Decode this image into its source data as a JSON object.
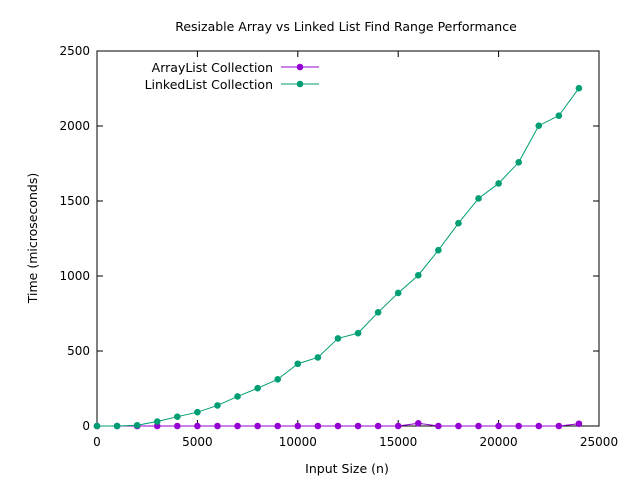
{
  "chart_data": {
    "type": "line",
    "title": "Resizable Array vs Linked List Find Range Performance",
    "xlabel": "Input Size (n)",
    "ylabel": "Time (microseconds)",
    "xlim": [
      0,
      25000
    ],
    "ylim": [
      0,
      2500
    ],
    "xticks": [
      0,
      5000,
      10000,
      15000,
      20000,
      25000
    ],
    "yticks": [
      0,
      500,
      1000,
      1500,
      2000,
      2500
    ],
    "grid": false,
    "legend_position": "top-left",
    "x": [
      0,
      1000,
      2000,
      3000,
      4000,
      5000,
      6000,
      7000,
      8000,
      9000,
      10000,
      11000,
      12000,
      13000,
      14000,
      15000,
      16000,
      17000,
      18000,
      19000,
      20000,
      21000,
      22000,
      23000,
      24000
    ],
    "series": [
      {
        "name": "ArrayList Collection",
        "color": "#9400d3",
        "values": [
          0,
          0,
          0,
          0,
          0,
          0,
          0,
          0,
          0,
          0,
          0,
          0,
          0,
          0,
          0,
          0,
          18,
          0,
          0,
          0,
          0,
          0,
          0,
          0,
          15
        ]
      },
      {
        "name": "LinkedList Collection",
        "color": "#009e73",
        "values": [
          0,
          0,
          5,
          30,
          62,
          92,
          137,
          197,
          252,
          311,
          415,
          457,
          584,
          619,
          758,
          887,
          1005,
          1172,
          1352,
          1517,
          1617,
          1758,
          2002,
          2069,
          2252
        ]
      }
    ]
  }
}
